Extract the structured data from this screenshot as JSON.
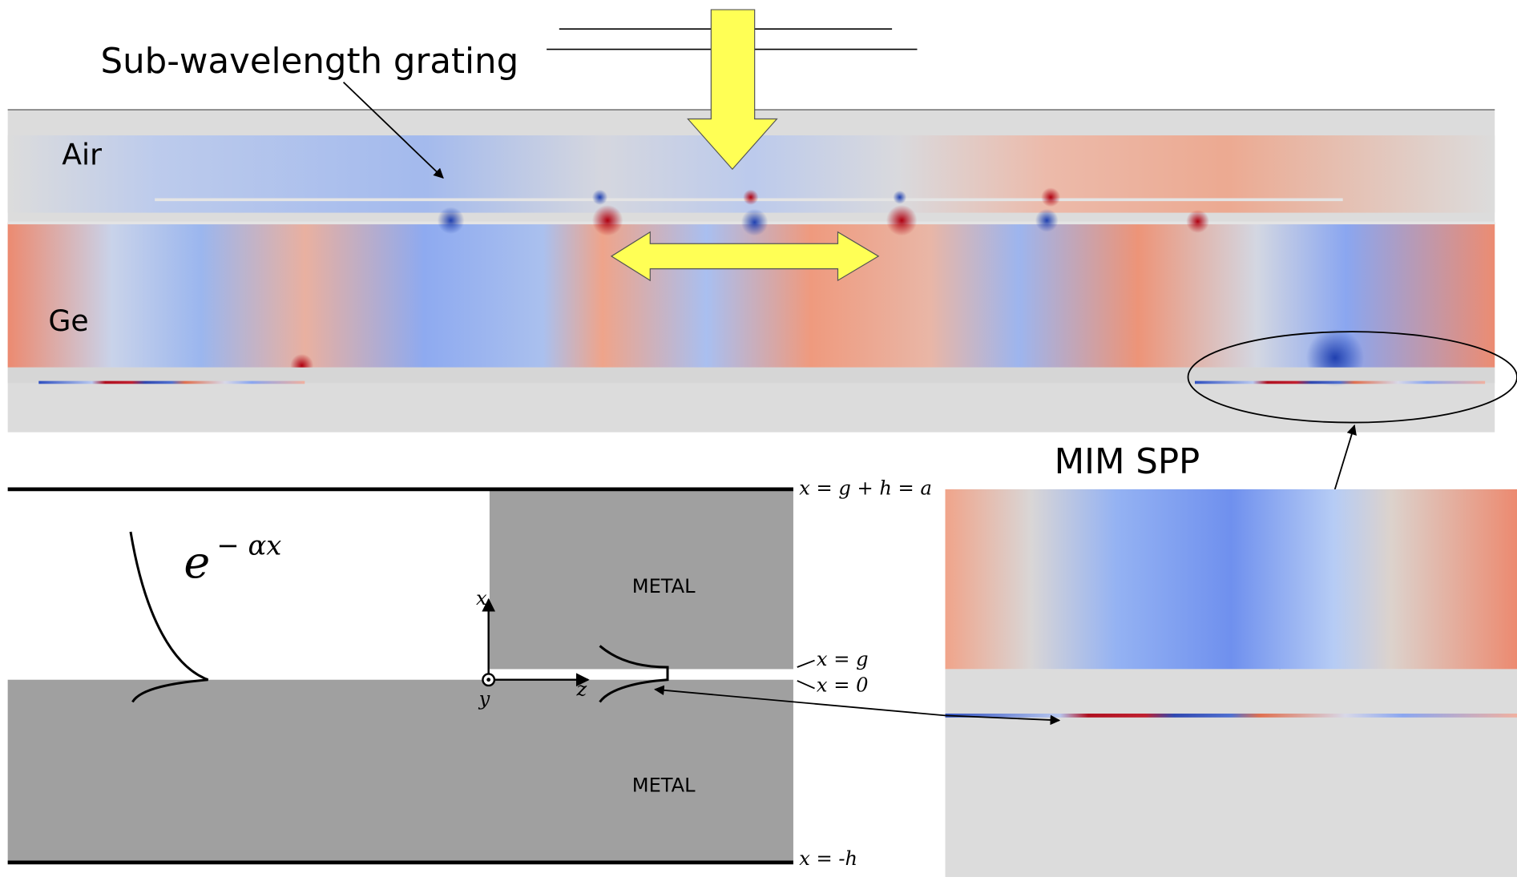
{
  "field_map": {
    "grating_label": "Sub-wavelength grating",
    "air_label": "Air",
    "ge_label": "Ge",
    "spp_label": "MIM SPP"
  },
  "waveguide": {
    "metal_top": "METAL",
    "metal_bottom": "METAL",
    "top_boundary": "x = g + h = a",
    "gap_top": "x = g",
    "origin": "x = 0",
    "bottom_boundary": "x = -h",
    "decay_base": "e",
    "decay_exponent": "− αx",
    "axis_x": "x",
    "axis_y": "y",
    "axis_z": "z"
  }
}
